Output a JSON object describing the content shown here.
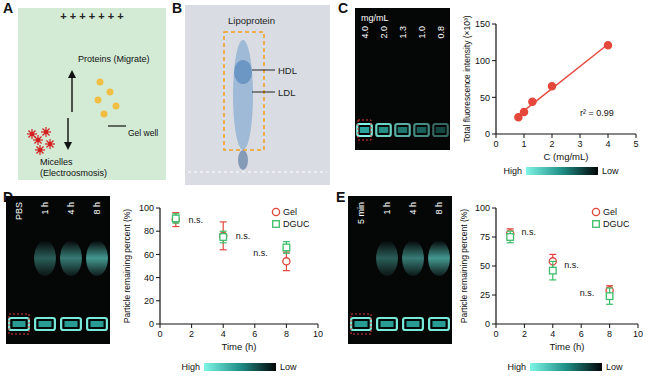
{
  "panels": {
    "A": {
      "letter": "A",
      "plus_signs": "+ + + + + + +",
      "proteins_label": "Proteins (Migrate)",
      "micelles_label": [
        "Micelles",
        "(Electroosmosis)"
      ],
      "gel_well_label": "Gel well"
    },
    "B": {
      "letter": "B",
      "title": "Lipoprotein",
      "bands": [
        "HDL",
        "LDL"
      ]
    },
    "C": {
      "letter": "C",
      "gel_unit": "mg/mL",
      "lanes": [
        "4.0",
        "2.0",
        "1.3",
        "1.0",
        "0.8"
      ],
      "colorbar": [
        "High",
        "Low"
      ]
    },
    "D": {
      "letter": "D",
      "lanes": [
        "PBS",
        "1 h",
        "4 h",
        "8 h"
      ],
      "colorbar": [
        "High",
        "Low"
      ]
    },
    "E": {
      "letter": "E",
      "lanes": [
        "5 min",
        "1 h",
        "4 h",
        "8 h"
      ],
      "colorbar": [
        "High",
        "Low"
      ]
    }
  },
  "chart_data": [
    {
      "type": "scatter",
      "x_label": "C (mg/mL)",
      "y_label": "Total fluorescence intensity (×10³)",
      "x": [
        0.8,
        1.0,
        1.3,
        2.0,
        4.0
      ],
      "values": [
        23,
        30,
        44,
        65,
        121
      ],
      "color": "#e5473b",
      "marker": "circle",
      "line_style": "solid",
      "xlim": [
        0,
        5
      ],
      "xticks": [
        0,
        1,
        2,
        3,
        4,
        5
      ],
      "ylim": [
        0,
        150
      ],
      "yticks": [
        0,
        50,
        100,
        150
      ],
      "grid": false,
      "annotations": [
        {
          "text": "r² = 0.99",
          "x": 3.0,
          "y": 28
        }
      ]
    },
    {
      "type": "scatter",
      "x_label": "Time (h)",
      "y_label": "Particle remaining percent (%)",
      "x": [
        1,
        4,
        8
      ],
      "series": [
        {
          "name": "Gel",
          "color": "#e0463c",
          "marker": "open-circle",
          "values": [
            90,
            76,
            54
          ],
          "errors": [
            6,
            12,
            8
          ]
        },
        {
          "name": "DGUC",
          "color": "#3dbd6a",
          "marker": "open-square",
          "values": [
            91,
            75,
            66
          ],
          "errors": [
            4,
            5,
            5
          ]
        }
      ],
      "xlim": [
        0,
        10
      ],
      "xticks": [
        0,
        2,
        4,
        6,
        8,
        10
      ],
      "ylim": [
        0,
        100
      ],
      "yticks": [
        0,
        20,
        40,
        60,
        80,
        100
      ],
      "grid": false,
      "legend": "top-right",
      "annotations": [
        {
          "text": "n.s.",
          "x": 1.8,
          "y": 90
        },
        {
          "text": "n.s.",
          "x": 4.8,
          "y": 76
        },
        {
          "text": "n.s.",
          "x": 5.9,
          "y": 61
        }
      ]
    },
    {
      "type": "scatter",
      "x_label": "Time (h)",
      "y_label": "Particle remaining percent (%)",
      "x": [
        1,
        4,
        8
      ],
      "series": [
        {
          "name": "Gel",
          "color": "#e0463c",
          "marker": "open-circle",
          "values": [
            78,
            54,
            29
          ],
          "errors": [
            4,
            6,
            4
          ]
        },
        {
          "name": "DGUC",
          "color": "#3dbd6a",
          "marker": "open-square",
          "values": [
            75,
            46,
            24
          ],
          "errors": [
            5,
            8,
            7
          ]
        }
      ],
      "xlim": [
        0,
        10
      ],
      "xticks": [
        0,
        2,
        4,
        6,
        8,
        10
      ],
      "ylim": [
        0,
        100
      ],
      "yticks": [
        0,
        25,
        50,
        75,
        100
      ],
      "grid": false,
      "legend": "top-right",
      "annotations": [
        {
          "text": "n.s.",
          "x": 1.8,
          "y": 79
        },
        {
          "text": "n.s.",
          "x": 4.8,
          "y": 51
        },
        {
          "text": "n.s.",
          "x": 5.9,
          "y": 27
        }
      ]
    }
  ]
}
